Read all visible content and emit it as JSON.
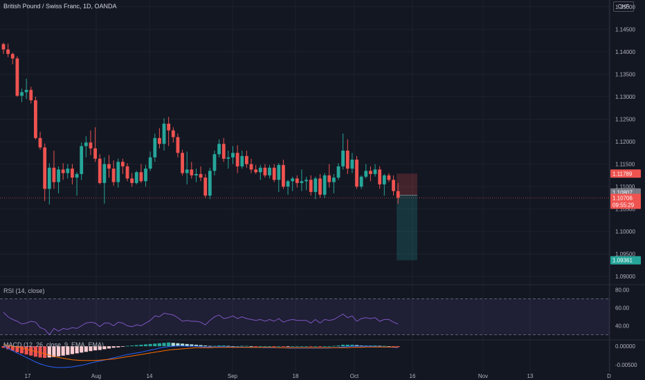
{
  "header": {
    "title": "British Pound / Swiss Franc, 1D, OANDA",
    "currency": "CHF"
  },
  "indicators": {
    "rsi_label": "RSI (14, close)",
    "macd_label": "MACD (12, 26, close, 9, EMA, EMA)"
  },
  "colors": {
    "background": "#131722",
    "up": "#26a69a",
    "down": "#ef5350",
    "text": "#b2b5be",
    "rsi_line": "#7e57c2",
    "macd_line": "#2962ff",
    "signal_line": "#ff6d00"
  },
  "chart_data": [
    {
      "type": "candlestick",
      "x_tick_labels": [
        "17",
        "Aug",
        "14",
        "Sep",
        "18",
        "Oct",
        "16",
        "Nov",
        "13",
        "D"
      ],
      "y_tick_labels": [
        "1.15000",
        "1.14500",
        "1.14000",
        "1.13500",
        "1.13000",
        "1.12500",
        "1.12000",
        "1.11500",
        "1.11000",
        "1.10500",
        "1.10000",
        "1.09500",
        "1.09000"
      ],
      "ylim": [
        1.0885,
        1.1515
      ],
      "series": [
        {
          "values": [
            [
              1.1417,
              1.142,
              1.1395,
              1.1405
            ],
            [
              1.1405,
              1.1418,
              1.1388,
              1.1395
            ],
            [
              1.1395,
              1.1398,
              1.1372,
              1.1385
            ],
            [
              1.1385,
              1.139,
              1.13,
              1.1302
            ],
            [
              1.1302,
              1.1318,
              1.1288,
              1.131
            ],
            [
              1.131,
              1.134,
              1.1295,
              1.1315
            ],
            [
              1.1315,
              1.1322,
              1.1285,
              1.1292
            ],
            [
              1.1292,
              1.13,
              1.1205,
              1.1208
            ],
            [
              1.1208,
              1.1222,
              1.1182,
              1.1187
            ],
            [
              1.1187,
              1.1196,
              1.1068,
              1.1095
            ],
            [
              1.1095,
              1.1152,
              1.106,
              1.1142
            ],
            [
              1.1142,
              1.118,
              1.1095,
              1.111
            ],
            [
              1.111,
              1.1145,
              1.1085,
              1.1138
            ],
            [
              1.1138,
              1.1152,
              1.1115,
              1.113
            ],
            [
              1.113,
              1.115,
              1.1118,
              1.114
            ],
            [
              1.114,
              1.115,
              1.1105,
              1.112
            ],
            [
              1.112,
              1.1132,
              1.108,
              1.1128
            ],
            [
              1.1128,
              1.1198,
              1.1115,
              1.119
            ],
            [
              1.119,
              1.1212,
              1.1165,
              1.1198
            ],
            [
              1.1198,
              1.1225,
              1.117,
              1.1185
            ],
            [
              1.1185,
              1.1232,
              1.1155,
              1.1162
            ],
            [
              1.1162,
              1.1172,
              1.1105,
              1.1108
            ],
            [
              1.1108,
              1.1165,
              1.1062,
              1.115
            ],
            [
              1.115,
              1.117,
              1.112,
              1.114
            ],
            [
              1.114,
              1.1158,
              1.1102,
              1.111
            ],
            [
              1.111,
              1.1162,
              1.1098,
              1.1155
            ],
            [
              1.1155,
              1.1162,
              1.1128,
              1.1145
            ],
            [
              1.1145,
              1.1152,
              1.1112,
              1.1118
            ],
            [
              1.1118,
              1.113,
              1.11,
              1.1108
            ],
            [
              1.1108,
              1.1135,
              1.1105,
              1.1132
            ],
            [
              1.1132,
              1.115,
              1.1108,
              1.1112
            ],
            [
              1.1112,
              1.1148,
              1.11,
              1.114
            ],
            [
              1.114,
              1.1178,
              1.1135,
              1.1165
            ],
            [
              1.1165,
              1.1218,
              1.1155,
              1.1208
            ],
            [
              1.1208,
              1.123,
              1.1185,
              1.1195
            ],
            [
              1.1195,
              1.1252,
              1.118,
              1.124
            ],
            [
              1.124,
              1.1255,
              1.119,
              1.1225
            ],
            [
              1.1225,
              1.1232,
              1.1198,
              1.121
            ],
            [
              1.121,
              1.1218,
              1.1165,
              1.1175
            ],
            [
              1.1175,
              1.1182,
              1.1125,
              1.113
            ],
            [
              1.113,
              1.1178,
              1.1105,
              1.1138
            ],
            [
              1.1138,
              1.1155,
              1.1118,
              1.1125
            ],
            [
              1.1125,
              1.114,
              1.111,
              1.1128
            ],
            [
              1.1128,
              1.1145,
              1.1112,
              1.112
            ],
            [
              1.112,
              1.1128,
              1.1075,
              1.108
            ],
            [
              1.108,
              1.1142,
              1.1072,
              1.1135
            ],
            [
              1.1135,
              1.118,
              1.1125,
              1.1172
            ],
            [
              1.1172,
              1.1205,
              1.1165,
              1.1195
            ],
            [
              1.1195,
              1.1208,
              1.1155,
              1.1162
            ],
            [
              1.1162,
              1.118,
              1.114,
              1.1165
            ],
            [
              1.1165,
              1.119,
              1.115,
              1.1175
            ],
            [
              1.1175,
              1.1192,
              1.113,
              1.1145
            ],
            [
              1.1145,
              1.118,
              1.114,
              1.1168
            ],
            [
              1.1168,
              1.118,
              1.1142,
              1.115
            ],
            [
              1.115,
              1.1162,
              1.113,
              1.1138
            ],
            [
              1.1138,
              1.1148,
              1.1128,
              1.1132
            ],
            [
              1.1132,
              1.1148,
              1.1115,
              1.1142
            ],
            [
              1.1142,
              1.115,
              1.112,
              1.1125
            ],
            [
              1.1125,
              1.1148,
              1.1118,
              1.1142
            ],
            [
              1.1142,
              1.115,
              1.111,
              1.1115
            ],
            [
              1.1115,
              1.1152,
              1.1088,
              1.1148
            ],
            [
              1.1148,
              1.116,
              1.1095,
              1.11
            ],
            [
              1.11,
              1.1115,
              1.1082,
              1.1112
            ],
            [
              1.1112,
              1.1122,
              1.109,
              1.1118
            ],
            [
              1.1118,
              1.1125,
              1.1098,
              1.1108
            ],
            [
              1.1108,
              1.1138,
              1.109,
              1.1112
            ],
            [
              1.1112,
              1.1122,
              1.1092,
              1.1115
            ],
            [
              1.1115,
              1.1125,
              1.108,
              1.1088
            ],
            [
              1.1088,
              1.1122,
              1.1072,
              1.1118
            ],
            [
              1.1118,
              1.1128,
              1.1075,
              1.1082
            ],
            [
              1.1082,
              1.113,
              1.1075,
              1.1125
            ],
            [
              1.1125,
              1.115,
              1.1098,
              1.111
            ],
            [
              1.111,
              1.1128,
              1.1085,
              1.112
            ],
            [
              1.112,
              1.1152,
              1.1115,
              1.1145
            ],
            [
              1.1145,
              1.1218,
              1.1138,
              1.118
            ],
            [
              1.118,
              1.1205,
              1.1128,
              1.114
            ],
            [
              1.114,
              1.1175,
              1.113,
              1.116
            ],
            [
              1.116,
              1.1168,
              1.1095,
              1.11
            ],
            [
              1.11,
              1.1125,
              1.1095,
              1.1122
            ],
            [
              1.1122,
              1.115,
              1.1118,
              1.1135
            ],
            [
              1.1135,
              1.1145,
              1.1112,
              1.1128
            ],
            [
              1.1128,
              1.115,
              1.1122,
              1.1138
            ],
            [
              1.1138,
              1.1145,
              1.1095,
              1.1105
            ],
            [
              1.1105,
              1.1128,
              1.108,
              1.1125
            ],
            [
              1.1125,
              1.113,
              1.111,
              1.1115
            ],
            [
              1.1115,
              1.1125,
              1.108,
              1.109
            ],
            [
              1.109,
              1.1108,
              1.1062,
              1.1075
            ]
          ]
        }
      ],
      "price_labels": [
        "1.11789",
        "1.10807",
        "1.10706",
        "09:55:29",
        "1.09361"
      ],
      "position_tool": {
        "entry": 1.10807,
        "stop": 1.11289,
        "target": 1.09361
      }
    },
    {
      "type": "line",
      "title": "RSI (14, close)",
      "y_tick_labels": [
        "80.00",
        "60.00",
        "40.00"
      ],
      "ylim": [
        25,
        85
      ],
      "bands": [
        70,
        30
      ],
      "series": [
        {
          "values": [
            55,
            50,
            47,
            45,
            42,
            43,
            45,
            44,
            38,
            36,
            30,
            37,
            34,
            37,
            36,
            38,
            37,
            40,
            43,
            44,
            43,
            39,
            43,
            43,
            40,
            44,
            43,
            40,
            39,
            41,
            40,
            43,
            46,
            51,
            50,
            54,
            53,
            52,
            49,
            45,
            46,
            45,
            45,
            44,
            41,
            46,
            50,
            52,
            48,
            49,
            51,
            48,
            50,
            48,
            47,
            46,
            47,
            45,
            47,
            45,
            48,
            44,
            46,
            47,
            46,
            46,
            46,
            43,
            47,
            43,
            47,
            46,
            47,
            50,
            53,
            49,
            51,
            45,
            48,
            49,
            48,
            49,
            45,
            47,
            47,
            44,
            42
          ]
        }
      ]
    },
    {
      "type": "bar",
      "title": "MACD (12, 26, close, 9, EMA, EMA)",
      "y_tick_labels": [
        "0.00000",
        "-0.00500"
      ],
      "ylim": [
        -0.0068,
        0.0015
      ],
      "series": [
        {
          "name": "histogram",
          "values": [
            -0.0004,
            -0.0008,
            -0.0012,
            -0.0016,
            -0.0019,
            -0.0022,
            -0.0025,
            -0.0028,
            -0.003,
            -0.0031,
            -0.003,
            -0.0029,
            -0.0027,
            -0.0025,
            -0.0023,
            -0.0021,
            -0.0019,
            -0.0017,
            -0.0015,
            -0.0013,
            -0.0011,
            -0.001,
            -0.0008,
            -0.0006,
            -0.0004,
            -0.0003,
            -0.0001,
            0.0001,
            0.0002,
            0.0003,
            0.0004,
            0.0005,
            0.0006,
            0.0007,
            0.0008,
            0.0009,
            0.001,
            0.0009,
            0.0008,
            0.0007,
            0.0006,
            0.0005,
            0.0004,
            0.0003,
            0.0002,
            0.0001,
            0.0001,
            0.0002,
            0.0002,
            0.0001,
            0.0,
            0.0,
            0.0001,
            0.0001,
            0.0,
            -0.0001,
            0.0,
            0.0,
            0.0,
            -0.0001,
            0.0,
            -0.0001,
            -0.0001,
            0.0,
            0.0,
            0.0,
            0.0,
            -0.0001,
            0.0,
            -0.0001,
            0.0,
            0.0,
            0.0001,
            0.0002,
            0.0004,
            0.0004,
            0.0004,
            0.0003,
            0.0002,
            0.0002,
            0.0002,
            0.0002,
            0.0001,
            0.0001,
            0.0,
            -0.0001,
            -0.0002
          ]
        },
        {
          "name": "macd",
          "values": [
            0.0,
            -0.0006,
            -0.0012,
            -0.0018,
            -0.0024,
            -0.003,
            -0.0036,
            -0.0042,
            -0.0047,
            -0.0051,
            -0.0054,
            -0.0056,
            -0.0057,
            -0.0057,
            -0.0056,
            -0.0055,
            -0.0053,
            -0.0051,
            -0.0048,
            -0.0045,
            -0.0042,
            -0.004,
            -0.0037,
            -0.0034,
            -0.0031,
            -0.0028,
            -0.0025,
            -0.0022,
            -0.002,
            -0.0018,
            -0.0016,
            -0.0013,
            -0.001,
            -0.0008,
            -0.0005,
            -0.0003,
            -0.0001,
            0.0,
            0.0001,
            0.0001,
            0.0,
            0.0,
            0.0,
            -0.0001,
            -0.0002,
            -0.0002,
            -0.0002,
            -0.0001,
            -0.0001,
            -0.0002,
            -0.0002,
            -0.0002,
            -0.0002,
            -0.0003,
            -0.0003,
            -0.0003,
            -0.0003,
            -0.0004,
            -0.0004,
            -0.0004,
            -0.0004,
            -0.0004,
            -0.0005,
            -0.0005,
            -0.0005,
            -0.0005,
            -0.0005,
            -0.0005,
            -0.0005,
            -0.0005,
            -0.0005,
            -0.0005,
            -0.0004,
            -0.0003,
            -0.0002,
            -0.0001,
            0.0,
            0.0,
            0.0,
            0.0,
            0.0,
            -0.0001,
            -0.0001,
            -0.0002,
            -0.0002,
            -0.0003,
            -0.0004
          ]
        },
        {
          "name": "signal",
          "values": [
            0.0004,
            0.0002,
            0.0,
            -0.0002,
            -0.0005,
            -0.0008,
            -0.0011,
            -0.0014,
            -0.0017,
            -0.002,
            -0.0024,
            -0.0027,
            -0.003,
            -0.0032,
            -0.0034,
            -0.0036,
            -0.0037,
            -0.0038,
            -0.0038,
            -0.0038,
            -0.0038,
            -0.0037,
            -0.0036,
            -0.0035,
            -0.0034,
            -0.0032,
            -0.003,
            -0.0028,
            -0.0026,
            -0.0024,
            -0.0022,
            -0.002,
            -0.0018,
            -0.0016,
            -0.0014,
            -0.0012,
            -0.001,
            -0.0009,
            -0.0008,
            -0.0007,
            -0.0006,
            -0.0005,
            -0.0004,
            -0.0004,
            -0.0004,
            -0.0004,
            -0.0003,
            -0.0003,
            -0.0003,
            -0.0003,
            -0.0003,
            -0.0003,
            -0.0003,
            -0.0003,
            -0.0003,
            -0.0003,
            -0.0003,
            -0.0003,
            -0.0003,
            -0.0003,
            -0.0004,
            -0.0004,
            -0.0004,
            -0.0004,
            -0.0004,
            -0.0004,
            -0.0004,
            -0.0004,
            -0.0004,
            -0.0004,
            -0.0004,
            -0.0004,
            -0.0004,
            -0.0004,
            -0.0004,
            -0.0004,
            -0.0003,
            -0.0003,
            -0.0003,
            -0.0002,
            -0.0002,
            -0.0002,
            -0.0002,
            -0.0002,
            -0.0002,
            -0.0002,
            -0.0002
          ]
        }
      ]
    }
  ]
}
